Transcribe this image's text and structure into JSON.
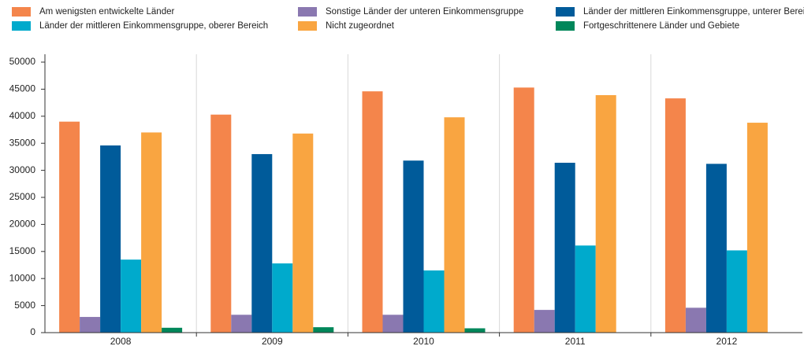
{
  "chart_data": {
    "type": "bar",
    "categories": [
      "2008",
      "2009",
      "2010",
      "2011",
      "2012"
    ],
    "series": [
      {
        "name": "Am wenigsten entwickelte Länder",
        "color": "#f4854b",
        "values": [
          39000,
          40300,
          44600,
          45300,
          43300
        ]
      },
      {
        "name": "Sonstige Länder der unteren Einkommensgruppe",
        "color": "#8a78b0",
        "values": [
          2900,
          3300,
          3300,
          4200,
          4600
        ]
      },
      {
        "name": "Länder der mittleren Einkommensgruppe, unterer Bereich",
        "color": "#005b9a",
        "values": [
          34600,
          33000,
          31800,
          31400,
          31200
        ]
      },
      {
        "name": "Länder der mittleren Einkommensgruppe, oberer Bereich",
        "color": "#00aacc",
        "values": [
          13500,
          12800,
          11500,
          16100,
          15200
        ]
      },
      {
        "name": "Nicht zugeordnet",
        "color": "#f9a541",
        "values": [
          37000,
          36800,
          39800,
          43900,
          38800
        ]
      },
      {
        "name": "Fortgeschrittenere Länder und Gebiete",
        "color": "#00875a",
        "values": [
          900,
          1000,
          800,
          0,
          0
        ]
      }
    ],
    "ylim": [
      0,
      50000
    ],
    "yticks": [
      0,
      5000,
      10000,
      15000,
      20000,
      25000,
      30000,
      35000,
      40000,
      45000,
      50000
    ],
    "legend": "top"
  }
}
